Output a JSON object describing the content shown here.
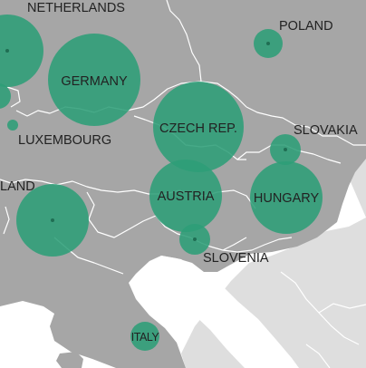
{
  "map": {
    "land_color": "#a6a6a6",
    "foreign_land_color": "#dedede",
    "sea_color": "#ffffff",
    "border_color": "#ffffff",
    "bubble_color": "#2e9e78"
  },
  "labels": {
    "netherlands": "NETHERLANDS",
    "poland": "POLAND",
    "germany": "GERMANY",
    "luxembourg": "LUXEMBOURG",
    "czech": "CZECH REP.",
    "slovakia": "SLOVAKIA",
    "austria": "AUSTRIA",
    "hungary": "HUNGARY",
    "switzerland_partial": "LAND",
    "slovenia": "SLOVENIA",
    "italy": "ITALY"
  }
}
